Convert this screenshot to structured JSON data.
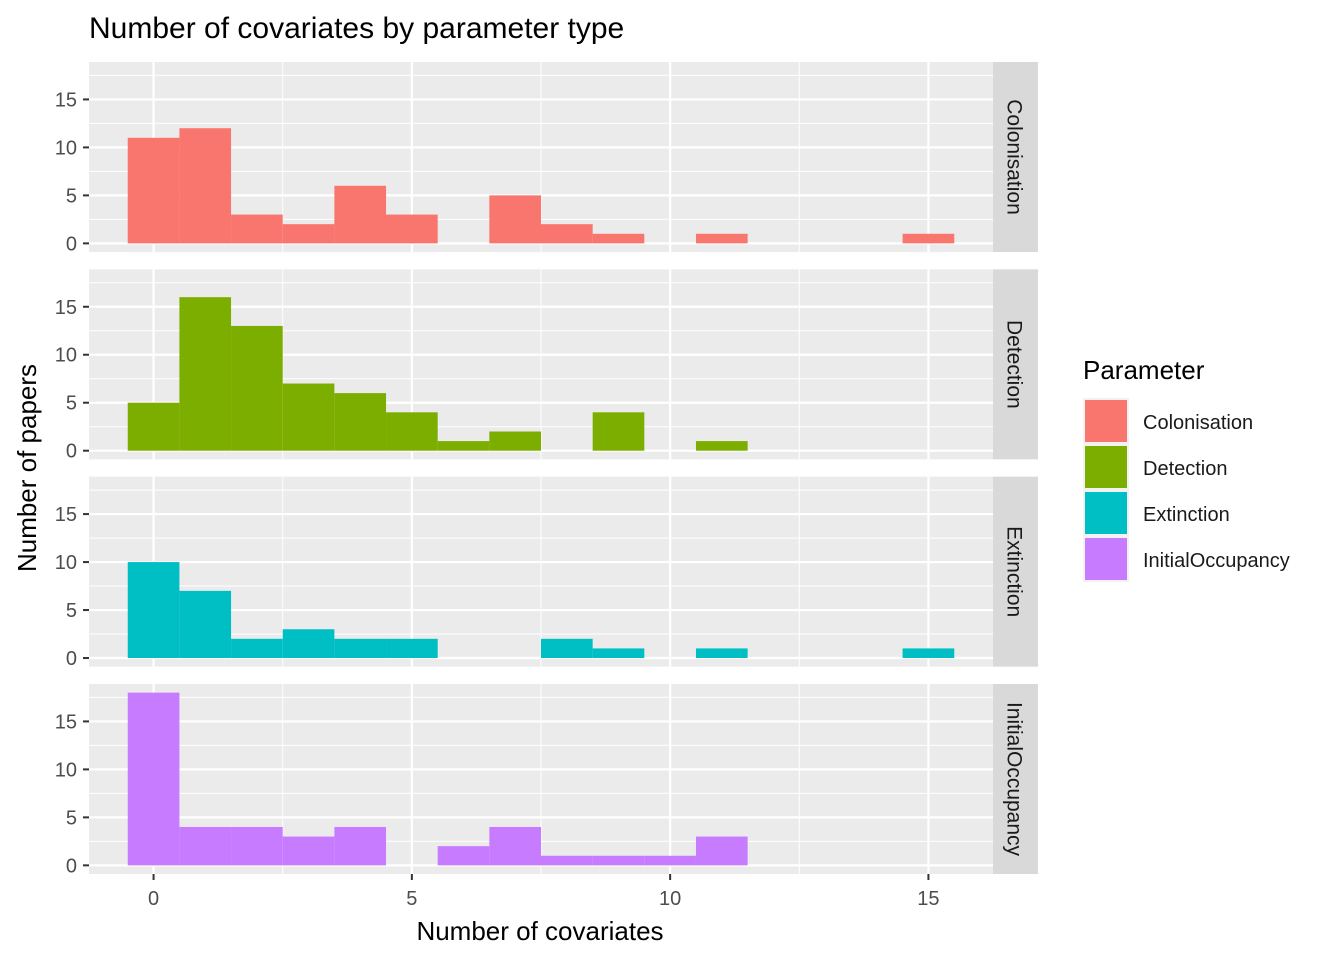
{
  "chart_data": {
    "type": "bar",
    "title": "Number of covariates by parameter type",
    "xlabel": "Number of covariates",
    "ylabel": "Number of papers",
    "xlim": [
      -1.25,
      16.25
    ],
    "ylim": [
      -0.9,
      18.9
    ],
    "xticks": [
      0,
      5,
      10,
      15
    ],
    "yticks": [
      0,
      5,
      10,
      15
    ],
    "grid": true,
    "legend": {
      "title": "Parameter",
      "position": "right"
    },
    "bins": [
      0,
      1,
      2,
      3,
      4,
      5,
      6,
      7,
      8,
      9,
      10,
      11,
      12,
      13,
      14,
      15
    ],
    "series": [
      {
        "name": "Colonisation",
        "color": "#F8766D",
        "values": [
          11,
          12,
          3,
          2,
          6,
          3,
          0,
          5,
          2,
          1,
          0,
          1,
          0,
          0,
          0,
          1
        ]
      },
      {
        "name": "Detection",
        "color": "#7CAE00",
        "values": [
          5,
          16,
          13,
          7,
          6,
          4,
          1,
          2,
          0,
          4,
          0,
          1,
          0,
          0,
          0,
          0
        ]
      },
      {
        "name": "Extinction",
        "color": "#00BFC4",
        "values": [
          10,
          7,
          2,
          3,
          2,
          2,
          0,
          0,
          2,
          1,
          0,
          1,
          0,
          0,
          0,
          1
        ]
      },
      {
        "name": "InitialOccupancy",
        "color": "#C77CFF",
        "values": [
          18,
          4,
          4,
          3,
          4,
          0,
          2,
          4,
          1,
          1,
          1,
          3,
          0,
          0,
          0,
          0
        ]
      }
    ]
  }
}
